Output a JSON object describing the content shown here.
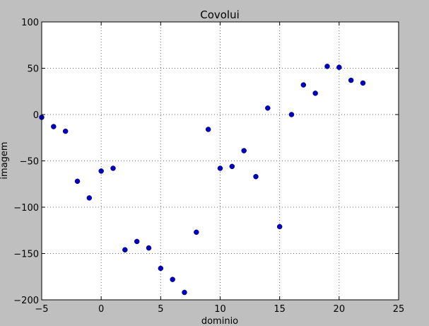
{
  "chart_data": {
    "type": "scatter",
    "title": "Covolui",
    "xlabel": "dominio",
    "ylabel": "imagem",
    "xlim": [
      -5,
      25
    ],
    "ylim": [
      -200,
      100
    ],
    "x_ticks": [
      -5,
      0,
      5,
      10,
      15,
      20,
      25
    ],
    "y_ticks": [
      -200,
      -150,
      -100,
      -50,
      0,
      50,
      100
    ],
    "grid": true,
    "legend": "none",
    "colors": {
      "figure_background": "#bfbfbf",
      "plot_background": "#ffffff",
      "marker": "#0000bf",
      "grid": "#666666"
    },
    "series": [
      {
        "points": [
          [
            -5,
            -3
          ],
          [
            -4,
            -13
          ],
          [
            -3,
            -18
          ],
          [
            -2,
            -72
          ],
          [
            -1,
            -90
          ],
          [
            0,
            -61
          ],
          [
            1,
            -58
          ],
          [
            2,
            -146
          ],
          [
            3,
            -137
          ],
          [
            4,
            -144
          ],
          [
            5,
            -166
          ],
          [
            6,
            -178
          ],
          [
            7,
            -192
          ],
          [
            8,
            -127
          ],
          [
            9,
            -16
          ],
          [
            10,
            -58
          ],
          [
            11,
            -56
          ],
          [
            12,
            -39
          ],
          [
            13,
            -67
          ],
          [
            14,
            7
          ],
          [
            15,
            -121
          ],
          [
            16,
            0
          ],
          [
            17,
            32
          ],
          [
            18,
            23
          ],
          [
            19,
            52
          ],
          [
            20,
            51
          ],
          [
            21,
            37
          ],
          [
            22,
            34
          ]
        ]
      }
    ]
  }
}
